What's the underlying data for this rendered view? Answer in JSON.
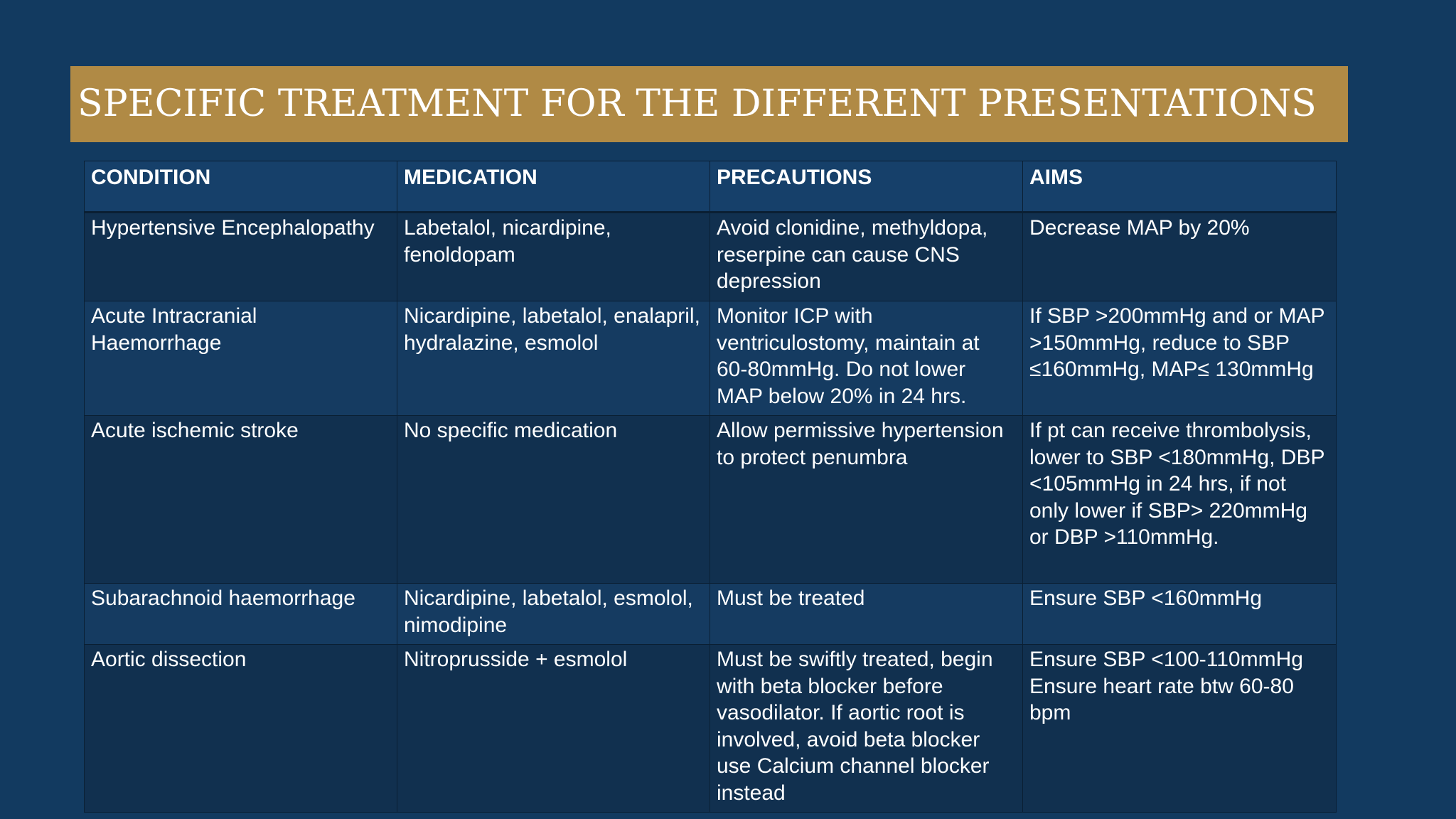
{
  "slide": {
    "title": "SPECIFIC TREATMENT FOR THE DIFFERENT PRESENTATIONS",
    "colors": {
      "background": "#123a60",
      "title_bar": "#b08a45",
      "text": "#ffffff",
      "cell_border": "#0a1f33"
    }
  },
  "table": {
    "headers": [
      "CONDITION",
      "MEDICATION",
      "PRECAUTIONS",
      "AIMS"
    ],
    "rows": [
      {
        "condition": "Hypertensive Encephalopathy",
        "medication": "Labetalol, nicardipine, fenoldopam",
        "precautions": "Avoid clonidine, methyldopa, reserpine can cause CNS depression",
        "aims": "Decrease MAP by 20%"
      },
      {
        "condition": "Acute Intracranial Haemorrhage",
        "medication": "Nicardipine, labetalol, enalapril, hydralazine, esmolol",
        "precautions": "Monitor ICP with ventriculostomy, maintain at 60-80mmHg. Do not lower MAP below 20% in 24 hrs.",
        "aims": "If SBP >200mmHg and or MAP  >150mmHg, reduce to SBP ≤160mmHg, MAP≤ 130mmHg"
      },
      {
        "condition": "Acute ischemic stroke",
        "medication": "No specific medication",
        "precautions": "Allow permissive hypertension to protect penumbra",
        "aims": "If pt can receive thrombolysis, lower to SBP <180mmHg, DBP <105mmHg in 24 hrs, if not only lower if SBP> 220mmHg or DBP >110mmHg."
      },
      {
        "condition": "Subarachnoid haemorrhage",
        "medication": "Nicardipine, labetalol, esmolol, nimodipine",
        "precautions": "Must be treated",
        "aims": "Ensure SBP <160mmHg"
      },
      {
        "condition": "Aortic dissection",
        "medication": "Nitroprusside + esmolol",
        "precautions": "Must be swiftly treated, begin with beta blocker before vasodilator. If aortic root is involved, avoid beta blocker use Calcium channel blocker instead",
        "aims_line1": "Ensure SBP <100-110mmHg",
        "aims_line2": "Ensure heart rate btw 60-80 bpm"
      }
    ]
  }
}
